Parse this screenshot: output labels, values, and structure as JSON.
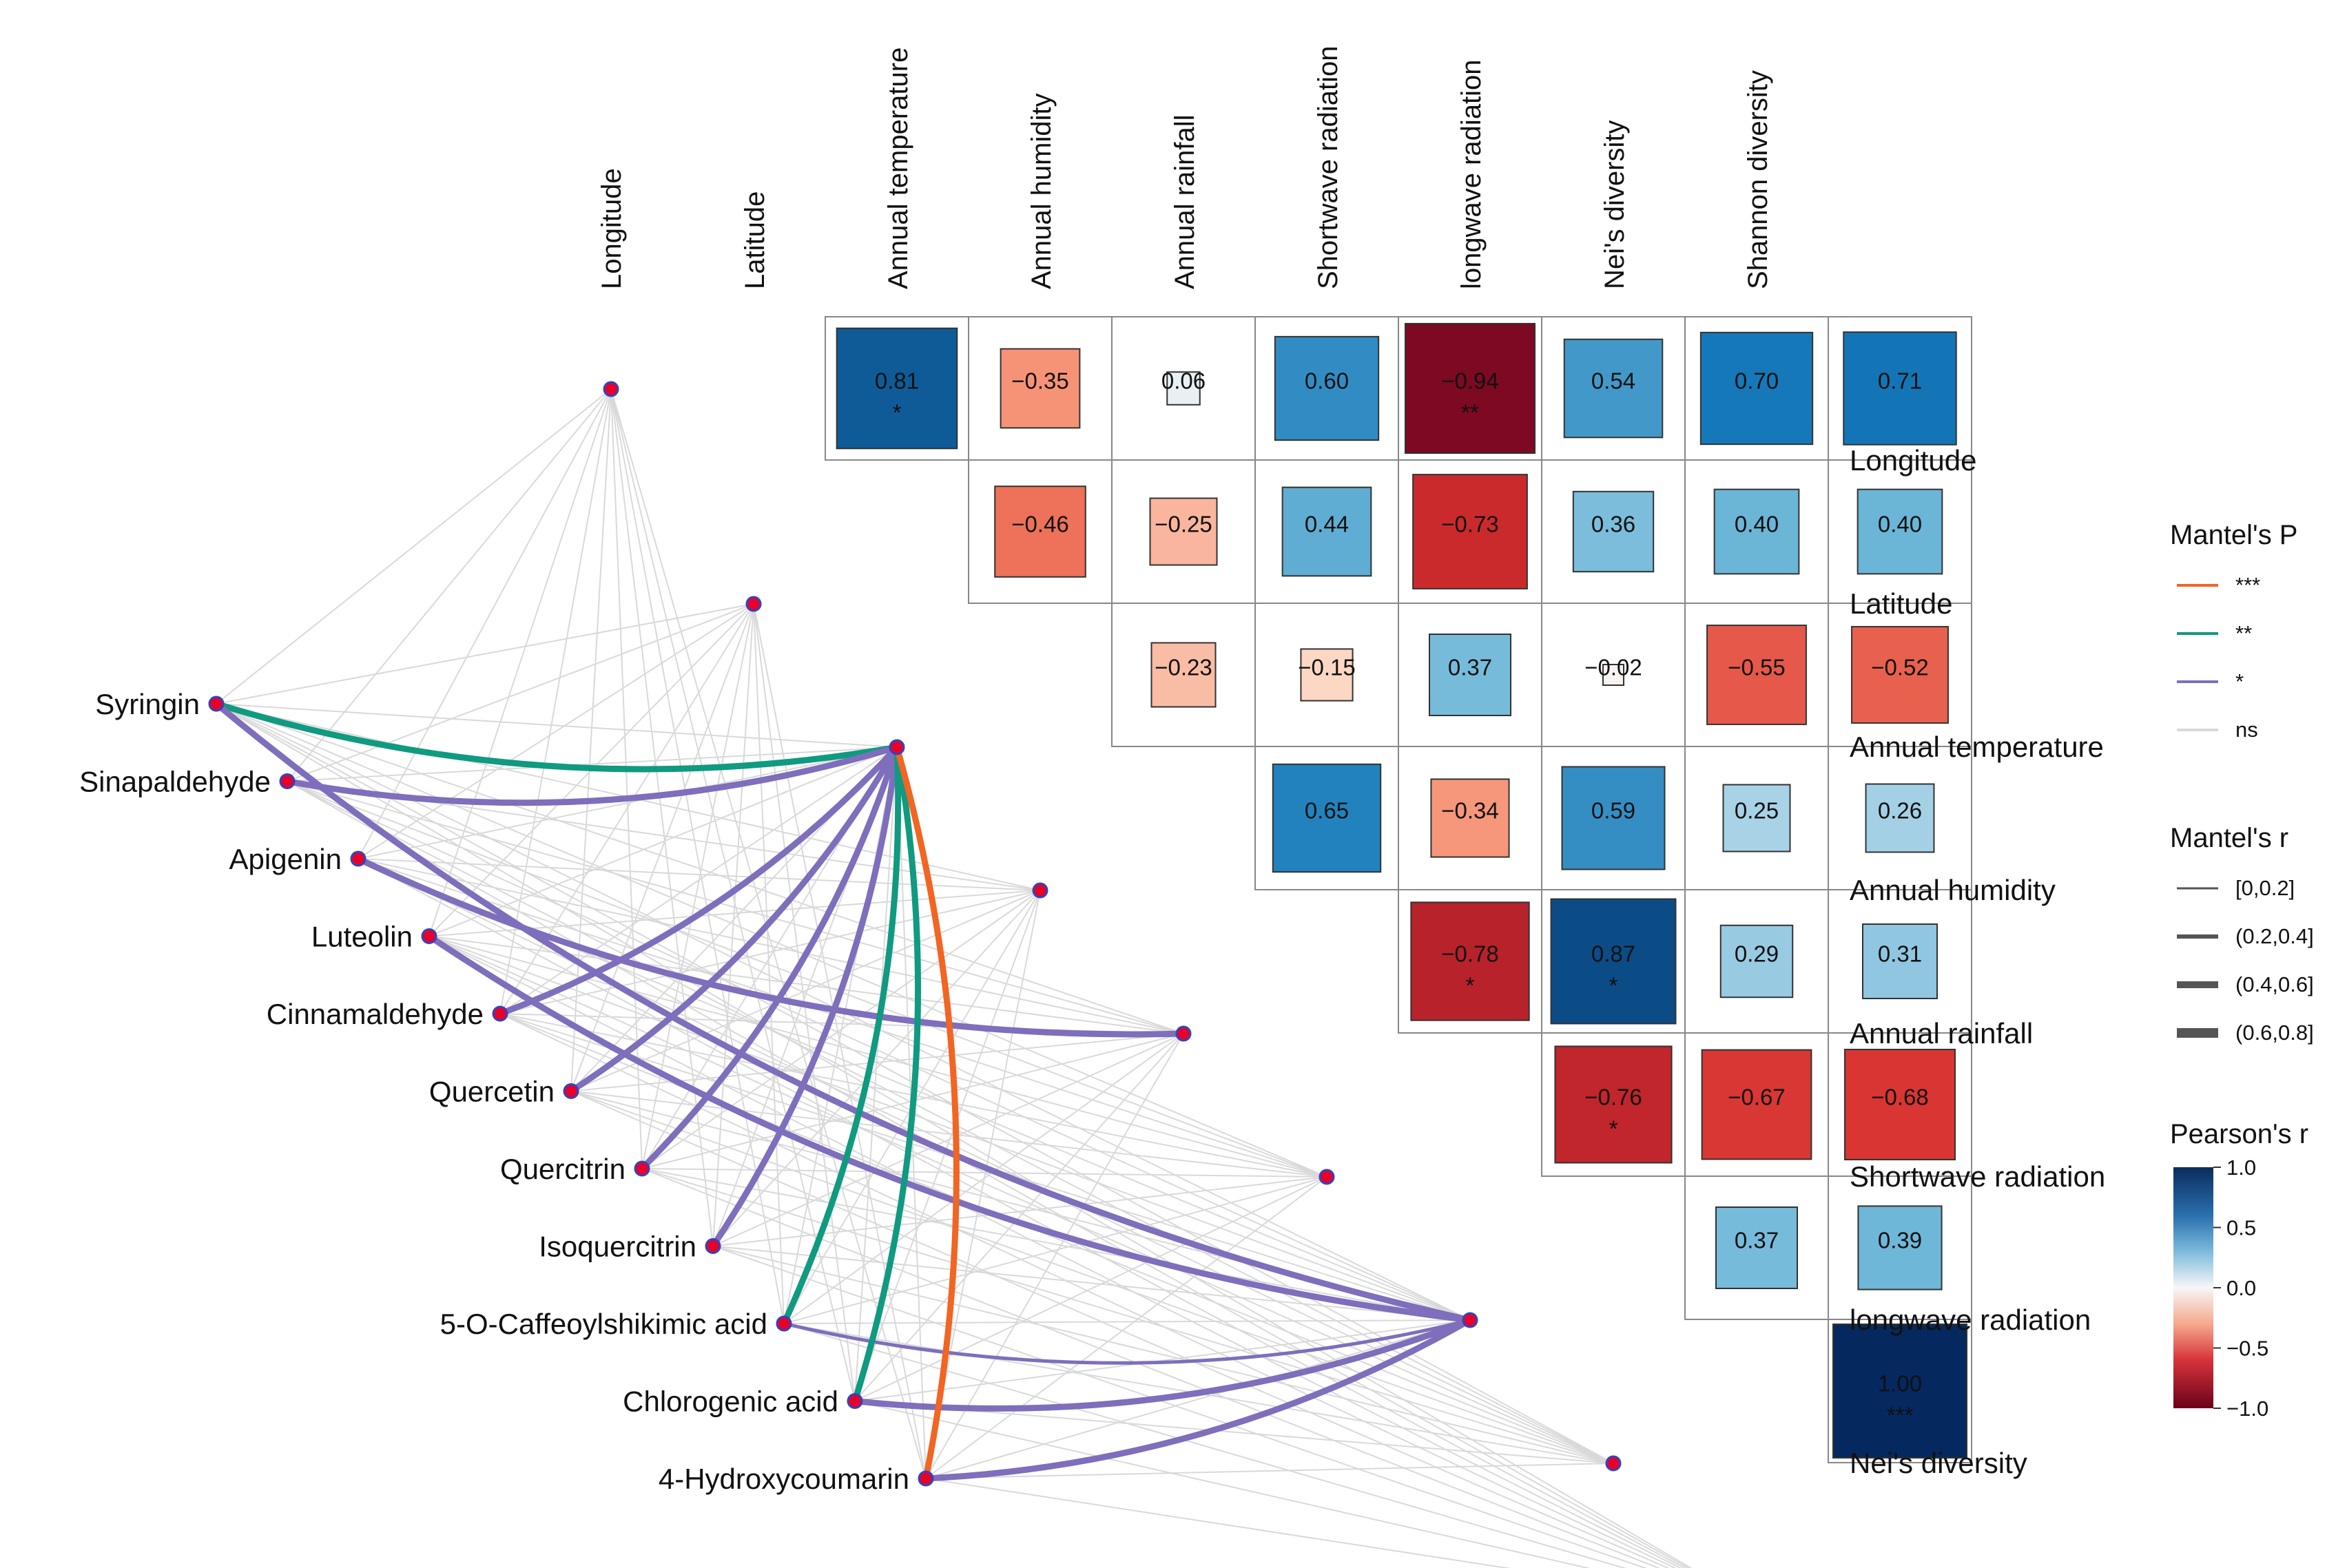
{
  "chart_data": {
    "type": "heatmap",
    "title": "",
    "environment_variables": [
      "Longitude",
      "Latitude",
      "Annual temperature",
      "Annual humidity",
      "Annual rainfall",
      "Shortwave radiation",
      "longwave radiation",
      "Nei's diversity",
      "Shannon diversity"
    ],
    "compounds": [
      "Syringin",
      "Sinapaldehyde",
      "Apigenin",
      "Luteolin",
      "Cinnamaldehyde",
      "Quercetin",
      "Quercitrin",
      "Isoquercitrin",
      "5-O-Caffeoylshikimic acid",
      "Chlorogenic acid",
      "4-Hydroxycoumarin"
    ],
    "correlations": [
      {
        "row": "Longitude",
        "col": "Latitude",
        "r": 0.81,
        "label": "0.81",
        "sig": "*"
      },
      {
        "row": "Longitude",
        "col": "Annual temperature",
        "r": -0.35,
        "label": "−0.35",
        "sig": ""
      },
      {
        "row": "Longitude",
        "col": "Annual humidity",
        "r": 0.06,
        "label": "0.06",
        "sig": ""
      },
      {
        "row": "Longitude",
        "col": "Annual rainfall",
        "r": 0.6,
        "label": "0.60",
        "sig": ""
      },
      {
        "row": "Longitude",
        "col": "Shortwave radiation",
        "r": -0.94,
        "label": "−0.94",
        "sig": "**"
      },
      {
        "row": "Longitude",
        "col": "longwave radiation",
        "r": 0.54,
        "label": "0.54",
        "sig": ""
      },
      {
        "row": "Longitude",
        "col": "Nei's diversity",
        "r": 0.7,
        "label": "0.70",
        "sig": ""
      },
      {
        "row": "Longitude",
        "col": "Shannon diversity",
        "r": 0.71,
        "label": "0.71",
        "sig": ""
      },
      {
        "row": "Latitude",
        "col": "Annual temperature",
        "r": -0.46,
        "label": "−0.46",
        "sig": ""
      },
      {
        "row": "Latitude",
        "col": "Annual humidity",
        "r": -0.25,
        "label": "−0.25",
        "sig": ""
      },
      {
        "row": "Latitude",
        "col": "Annual rainfall",
        "r": 0.44,
        "label": "0.44",
        "sig": ""
      },
      {
        "row": "Latitude",
        "col": "Shortwave radiation",
        "r": -0.73,
        "label": "−0.73",
        "sig": ""
      },
      {
        "row": "Latitude",
        "col": "longwave radiation",
        "r": 0.36,
        "label": "0.36",
        "sig": ""
      },
      {
        "row": "Latitude",
        "col": "Nei's diversity",
        "r": 0.4,
        "label": "0.40",
        "sig": ""
      },
      {
        "row": "Latitude",
        "col": "Shannon diversity",
        "r": 0.4,
        "label": "0.40",
        "sig": ""
      },
      {
        "row": "Annual temperature",
        "col": "Annual humidity",
        "r": -0.23,
        "label": "−0.23",
        "sig": ""
      },
      {
        "row": "Annual temperature",
        "col": "Annual rainfall",
        "r": -0.15,
        "label": "−0.15",
        "sig": ""
      },
      {
        "row": "Annual temperature",
        "col": "Shortwave radiation",
        "r": 0.37,
        "label": "0.37",
        "sig": ""
      },
      {
        "row": "Annual temperature",
        "col": "longwave radiation",
        "r": -0.02,
        "label": "−0.02",
        "sig": ""
      },
      {
        "row": "Annual temperature",
        "col": "Nei's diversity",
        "r": -0.55,
        "label": "−0.55",
        "sig": ""
      },
      {
        "row": "Annual temperature",
        "col": "Shannon diversity",
        "r": -0.52,
        "label": "−0.52",
        "sig": ""
      },
      {
        "row": "Annual humidity",
        "col": "Annual rainfall",
        "r": 0.65,
        "label": "0.65",
        "sig": ""
      },
      {
        "row": "Annual humidity",
        "col": "Shortwave radiation",
        "r": -0.34,
        "label": "−0.34",
        "sig": ""
      },
      {
        "row": "Annual humidity",
        "col": "longwave radiation",
        "r": 0.59,
        "label": "0.59",
        "sig": ""
      },
      {
        "row": "Annual humidity",
        "col": "Nei's diversity",
        "r": 0.25,
        "label": "0.25",
        "sig": ""
      },
      {
        "row": "Annual humidity",
        "col": "Shannon diversity",
        "r": 0.26,
        "label": "0.26",
        "sig": ""
      },
      {
        "row": "Annual rainfall",
        "col": "Shortwave radiation",
        "r": -0.78,
        "label": "−0.78",
        "sig": "*"
      },
      {
        "row": "Annual rainfall",
        "col": "longwave radiation",
        "r": 0.87,
        "label": "0.87",
        "sig": "*"
      },
      {
        "row": "Annual rainfall",
        "col": "Nei's diversity",
        "r": 0.29,
        "label": "0.29",
        "sig": ""
      },
      {
        "row": "Annual rainfall",
        "col": "Shannon diversity",
        "r": 0.31,
        "label": "0.31",
        "sig": ""
      },
      {
        "row": "Shortwave radiation",
        "col": "longwave radiation",
        "r": -0.76,
        "label": "−0.76",
        "sig": "*"
      },
      {
        "row": "Shortwave radiation",
        "col": "Nei's diversity",
        "r": -0.67,
        "label": "−0.67",
        "sig": ""
      },
      {
        "row": "Shortwave radiation",
        "col": "Shannon diversity",
        "r": -0.68,
        "label": "−0.68",
        "sig": ""
      },
      {
        "row": "longwave radiation",
        "col": "Nei's diversity",
        "r": 0.37,
        "label": "0.37",
        "sig": ""
      },
      {
        "row": "longwave radiation",
        "col": "Shannon diversity",
        "r": 0.39,
        "label": "0.39",
        "sig": ""
      },
      {
        "row": "Nei's diversity",
        "col": "Shannon diversity",
        "r": 1.0,
        "label": "1.00",
        "sig": "***"
      }
    ],
    "mantel_links": [
      {
        "compound": "Syringin",
        "env": "Annual temperature",
        "p": "**",
        "r": "(0.4,0.6]"
      },
      {
        "compound": "Syringin",
        "env": "longwave radiation",
        "p": "*",
        "r": "(0.4,0.6]"
      },
      {
        "compound": "Sinapaldehyde",
        "env": "Annual temperature",
        "p": "*",
        "r": "(0.4,0.6]"
      },
      {
        "compound": "Apigenin",
        "env": "Annual rainfall",
        "p": "*",
        "r": "(0.4,0.6]"
      },
      {
        "compound": "Luteolin",
        "env": "longwave radiation",
        "p": "*",
        "r": "(0.4,0.6]"
      },
      {
        "compound": "Cinnamaldehyde",
        "env": "Annual temperature",
        "p": "*",
        "r": "(0.4,0.6]"
      },
      {
        "compound": "Quercetin",
        "env": "Annual temperature",
        "p": "*",
        "r": "(0.4,0.6]"
      },
      {
        "compound": "Quercitrin",
        "env": "Annual temperature",
        "p": "*",
        "r": "(0.4,0.6]"
      },
      {
        "compound": "Isoquercitrin",
        "env": "Annual temperature",
        "p": "*",
        "r": "(0.4,0.6]"
      },
      {
        "compound": "5-O-Caffeoylshikimic acid",
        "env": "Annual temperature",
        "p": "**",
        "r": "(0.4,0.6]"
      },
      {
        "compound": "5-O-Caffeoylshikimic acid",
        "env": "longwave radiation",
        "p": "*",
        "r": "(0.2,0.4]"
      },
      {
        "compound": "Chlorogenic acid",
        "env": "Annual temperature",
        "p": "**",
        "r": "(0.4,0.6]"
      },
      {
        "compound": "Chlorogenic acid",
        "env": "longwave radiation",
        "p": "*",
        "r": "(0.4,0.6]"
      },
      {
        "compound": "4-Hydroxycoumarin",
        "env": "Annual temperature",
        "p": "***",
        "r": "(0.4,0.6]"
      },
      {
        "compound": "4-Hydroxycoumarin",
        "env": "longwave radiation",
        "p": "*",
        "r": "(0.4,0.6]"
      }
    ],
    "legend": {
      "mantel_p_title": "Mantel's P",
      "mantel_p": [
        {
          "label": "***",
          "color": "#f26522"
        },
        {
          "label": "**",
          "color": "#109a80"
        },
        {
          "label": "*",
          "color": "#7e6ebc"
        },
        {
          "label": "ns",
          "color": "#d9d9d9"
        }
      ],
      "mantel_r_title": "Mantel's r",
      "mantel_r": [
        "[0,0.2]",
        "(0.2,0.4]",
        "(0.4,0.6]",
        "(0.6,0.8]"
      ],
      "pearson_title": "Pearson's r",
      "pearson_ticks": [
        "1.0",
        "0.5",
        "0.0",
        "−0.5",
        "−1.0"
      ],
      "position": "right"
    }
  }
}
